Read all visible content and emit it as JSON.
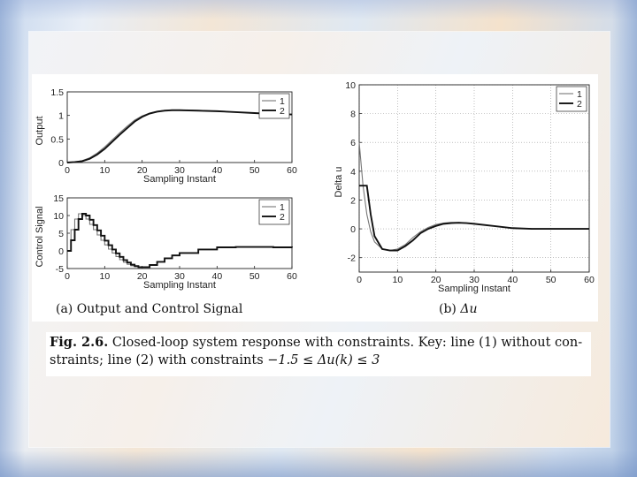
{
  "chart_data": [
    {
      "type": "line",
      "panel": "a-top",
      "xlabel": "Sampling Instant",
      "ylabel": "Output",
      "xlim": [
        0,
        60
      ],
      "ylim": [
        0,
        1.5
      ],
      "xticks": [
        "0",
        "10",
        "20",
        "30",
        "40",
        "50",
        "60"
      ],
      "yticks": [
        "0",
        "0.5",
        "1",
        "1.5"
      ],
      "legend": "top-right",
      "series": [
        {
          "name": "1",
          "x": [
            0,
            2,
            4,
            6,
            8,
            10,
            12,
            14,
            16,
            18,
            20,
            22,
            24,
            26,
            28,
            30,
            35,
            40,
            45,
            50,
            55,
            60
          ],
          "values": [
            0,
            0.01,
            0.04,
            0.1,
            0.2,
            0.33,
            0.48,
            0.63,
            0.77,
            0.9,
            0.99,
            1.05,
            1.09,
            1.11,
            1.12,
            1.12,
            1.11,
            1.09,
            1.07,
            1.05,
            1.03,
            1.02
          ]
        },
        {
          "name": "2",
          "x": [
            0,
            2,
            4,
            6,
            8,
            10,
            12,
            14,
            16,
            18,
            20,
            22,
            24,
            26,
            28,
            30,
            35,
            40,
            45,
            50,
            55,
            60
          ],
          "values": [
            0,
            0.01,
            0.03,
            0.08,
            0.17,
            0.29,
            0.44,
            0.59,
            0.73,
            0.87,
            0.97,
            1.04,
            1.08,
            1.1,
            1.11,
            1.11,
            1.1,
            1.09,
            1.07,
            1.05,
            1.03,
            1.02
          ]
        }
      ]
    },
    {
      "type": "line",
      "panel": "a-bottom",
      "xlabel": "Sampling Instant",
      "ylabel": "Control Signal",
      "xlim": [
        0,
        60
      ],
      "ylim": [
        -5,
        15
      ],
      "xticks": [
        "0",
        "10",
        "20",
        "30",
        "40",
        "50",
        "60"
      ],
      "yticks": [
        "-5",
        "0",
        "5",
        "10",
        "15"
      ],
      "legend": "top-right",
      "series": [
        {
          "name": "1",
          "x": [
            0,
            1,
            2,
            3,
            4,
            5,
            6,
            7,
            8,
            9,
            10,
            11,
            12,
            13,
            14,
            15,
            16,
            17,
            18,
            19,
            20,
            22,
            24,
            26,
            28,
            30,
            35,
            40,
            45,
            50,
            55,
            60
          ],
          "values": [
            0,
            6,
            9,
            10.5,
            10,
            9,
            7.5,
            6,
            4.5,
            3,
            1.7,
            0.5,
            -0.6,
            -1.6,
            -2.5,
            -3.2,
            -3.8,
            -4.2,
            -4.5,
            -4.6,
            -4.5,
            -3.9,
            -3,
            -2,
            -1.2,
            -0.5,
            0.5,
            1,
            1.1,
            1.1,
            1,
            0.9
          ]
        },
        {
          "name": "2",
          "x": [
            0,
            1,
            2,
            3,
            4,
            5,
            6,
            7,
            8,
            9,
            10,
            11,
            12,
            13,
            14,
            15,
            16,
            17,
            18,
            19,
            20,
            22,
            24,
            26,
            28,
            30,
            35,
            40,
            45,
            50,
            55,
            60
          ],
          "values": [
            0,
            3,
            6,
            9,
            10.5,
            10,
            8.8,
            7.3,
            5.8,
            4.3,
            2.9,
            1.6,
            0.4,
            -0.7,
            -1.7,
            -2.6,
            -3.3,
            -3.9,
            -4.3,
            -4.6,
            -4.6,
            -4,
            -3.1,
            -2.1,
            -1.3,
            -0.6,
            0.4,
            1,
            1.1,
            1.1,
            1,
            0.9
          ]
        }
      ]
    },
    {
      "type": "line",
      "panel": "b",
      "xlabel": "Sampling Instant",
      "ylabel": "Delta u",
      "xlim": [
        0,
        60
      ],
      "ylim": [
        -3,
        10
      ],
      "xticks": [
        "0",
        "10",
        "20",
        "30",
        "40",
        "50",
        "60"
      ],
      "yticks": [
        "-2",
        "0",
        "2",
        "4",
        "6",
        "8",
        "10"
      ],
      "grid": true,
      "legend": "top-right",
      "series": [
        {
          "name": "1",
          "x": [
            0,
            1,
            2,
            3,
            4,
            6,
            8,
            10,
            12,
            14,
            16,
            18,
            20,
            22,
            24,
            26,
            28,
            30,
            35,
            40,
            45,
            50,
            55,
            60
          ],
          "values": [
            6,
            3,
            1,
            -0.2,
            -0.9,
            -1.4,
            -1.5,
            -1.4,
            -1.1,
            -0.6,
            -0.2,
            0.1,
            0.3,
            0.4,
            0.45,
            0.45,
            0.4,
            0.35,
            0.2,
            0.05,
            0,
            0,
            0,
            0
          ]
        },
        {
          "name": "2",
          "x": [
            0,
            1,
            2,
            2.5,
            3,
            4,
            6,
            8,
            10,
            12,
            14,
            16,
            18,
            20,
            22,
            24,
            26,
            28,
            30,
            35,
            40,
            45,
            50,
            55,
            60
          ],
          "values": [
            3,
            3,
            3,
            2,
            1,
            -0.5,
            -1.4,
            -1.5,
            -1.5,
            -1.2,
            -0.8,
            -0.3,
            0,
            0.2,
            0.35,
            0.4,
            0.42,
            0.4,
            0.35,
            0.2,
            0.05,
            0,
            0,
            0,
            0
          ]
        }
      ]
    }
  ],
  "subfig_labels": {
    "a": "(a) Output and Control Signal",
    "b_prefix": "(b) ",
    "b_math": "Δu"
  },
  "caption": {
    "label": "Fig. 2.6.",
    "line1": " Closed-loop system response with constraints. Key: line (1) without con-",
    "line2_text": "straints; line (2) with constraints ",
    "line2_math": "−1.5 ≤ Δu(k) ≤ 3"
  }
}
